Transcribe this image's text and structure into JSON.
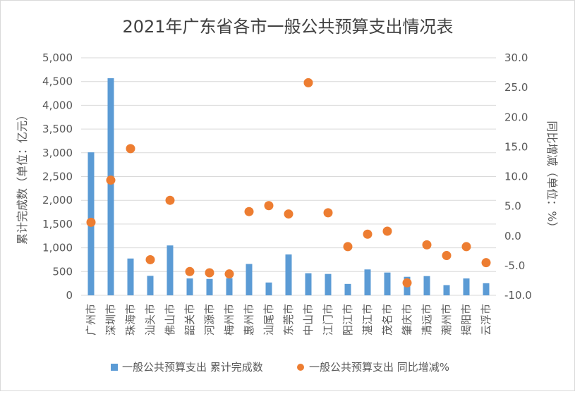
{
  "chart_data": {
    "type": "bar",
    "title": "2021年广东省各市一般公共预算支出情况表",
    "categories": [
      "广州市",
      "深圳市",
      "珠海市",
      "汕头市",
      "佛山市",
      "韶关市",
      "河源市",
      "梅州市",
      "惠州市",
      "汕尾市",
      "东莞市",
      "中山市",
      "江门市",
      "阳江市",
      "湛江市",
      "茂名市",
      "肇庆市",
      "清远市",
      "潮州市",
      "揭阳市",
      "云浮市"
    ],
    "series": [
      {
        "name": "一般公共预算支出 累计完成数",
        "type": "bar",
        "axis": "left",
        "color": "#5B9BD5",
        "values": [
          3010,
          4570,
          775,
          410,
          1050,
          355,
          345,
          360,
          660,
          270,
          860,
          465,
          450,
          240,
          545,
          480,
          390,
          405,
          215,
          355,
          255
        ]
      },
      {
        "name": "一般公共预算支出 同比增减%",
        "type": "scatter",
        "axis": "right",
        "color": "#ED7D31",
        "values": [
          2.3,
          9.4,
          14.7,
          -4.0,
          6.0,
          -6.0,
          -6.2,
          -6.4,
          4.1,
          5.1,
          3.7,
          25.8,
          3.9,
          -1.8,
          0.3,
          0.8,
          -7.9,
          -1.5,
          -3.3,
          -1.8,
          -4.5
        ]
      }
    ],
    "ylabel": "累计完成数（单位：亿元）",
    "y2label": "同比增减（单位：%）",
    "ylim": [
      0,
      5000
    ],
    "yticks": [
      "0",
      "500",
      "1,000",
      "1,500",
      "2,000",
      "2,500",
      "3,000",
      "3,500",
      "4,000",
      "4,500",
      "5,000"
    ],
    "y2lim": [
      -10,
      30
    ],
    "y2ticks": [
      "-10.0",
      "-5.0",
      "0.0",
      "5.0",
      "10.0",
      "15.0",
      "20.0",
      "25.0",
      "30.0"
    ],
    "grid": true,
    "legend_position": "bottom"
  }
}
